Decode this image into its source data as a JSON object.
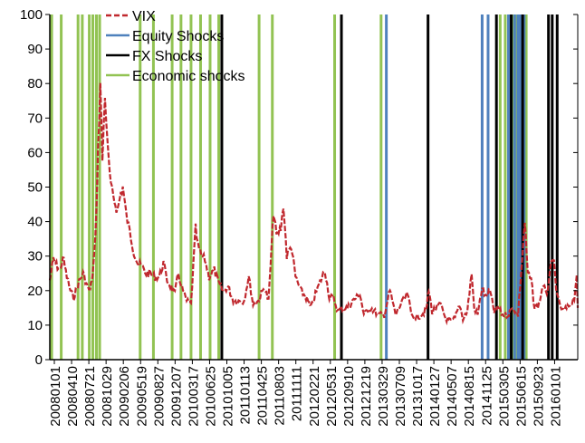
{
  "chart_data": {
    "type": "line",
    "title": "",
    "xlabel": "",
    "ylabel": "",
    "ylim": [
      0,
      100
    ],
    "yticks": [
      0,
      10,
      20,
      30,
      40,
      50,
      60,
      70,
      80,
      90,
      100
    ],
    "xlim": [
      "2008-01-01",
      "2016-06-30"
    ],
    "x_tick_labels": [
      "20080101",
      "20080410",
      "20080721",
      "20081029",
      "20090206",
      "20090519",
      "20090827",
      "20091207",
      "20100317",
      "20100625",
      "20101005",
      "20110113",
      "20110425",
      "20110803",
      "20111111",
      "20120221",
      "20120531",
      "20120910",
      "20121219",
      "20130329",
      "20130709",
      "20131017",
      "20140127",
      "20140507",
      "20140815",
      "20141125",
      "20150305",
      "20150615",
      "20150923",
      "20160101"
    ],
    "grid": false,
    "legend": {
      "position": "top-left",
      "entries": [
        {
          "label": "VIX",
          "color": "#c0282e",
          "style": "dashed"
        },
        {
          "label": "Equity Shocks",
          "color": "#4f81bd",
          "style": "solid"
        },
        {
          "label": "FX Shocks",
          "color": "#000000",
          "style": "solid"
        },
        {
          "label": "Economic shocks",
          "color": "#92c353",
          "style": "solid"
        }
      ]
    },
    "series": [
      {
        "name": "VIX",
        "color": "#c0282e",
        "points": [
          [
            "2008-01-01",
            23
          ],
          [
            "2008-01-22",
            29
          ],
          [
            "2008-02-15",
            27
          ],
          [
            "2008-03-05",
            26
          ],
          [
            "2008-03-17",
            30
          ],
          [
            "2008-04-10",
            24
          ],
          [
            "2008-05-01",
            20
          ],
          [
            "2008-05-20",
            18
          ],
          [
            "2008-06-15",
            22
          ],
          [
            "2008-07-15",
            25
          ],
          [
            "2008-08-10",
            21
          ],
          [
            "2008-08-25",
            20
          ],
          [
            "2008-09-10",
            25
          ],
          [
            "2008-09-25",
            35
          ],
          [
            "2008-10-10",
            60
          ],
          [
            "2008-10-24",
            80
          ],
          [
            "2008-11-05",
            58
          ],
          [
            "2008-11-20",
            77
          ],
          [
            "2008-12-05",
            62
          ],
          [
            "2008-12-25",
            50
          ],
          [
            "2009-01-15",
            46
          ],
          [
            "2009-02-01",
            43
          ],
          [
            "2009-02-20",
            48
          ],
          [
            "2009-03-05",
            50
          ],
          [
            "2009-03-25",
            42
          ],
          [
            "2009-04-15",
            37
          ],
          [
            "2009-05-10",
            31
          ],
          [
            "2009-06-01",
            28
          ],
          [
            "2009-06-25",
            27
          ],
          [
            "2009-07-20",
            25
          ],
          [
            "2009-08-15",
            25
          ],
          [
            "2009-09-10",
            24
          ],
          [
            "2009-10-05",
            24
          ],
          [
            "2009-10-30",
            28
          ],
          [
            "2009-11-20",
            23
          ],
          [
            "2009-12-15",
            21
          ],
          [
            "2010-01-05",
            19
          ],
          [
            "2010-01-25",
            25
          ],
          [
            "2010-02-15",
            21
          ],
          [
            "2010-03-15",
            17
          ],
          [
            "2010-04-10",
            16
          ],
          [
            "2010-05-07",
            38
          ],
          [
            "2010-05-20",
            33
          ],
          [
            "2010-06-10",
            30
          ],
          [
            "2010-07-01",
            29
          ],
          [
            "2010-07-25",
            24
          ],
          [
            "2010-08-25",
            26
          ],
          [
            "2010-09-20",
            22
          ],
          [
            "2010-10-15",
            20
          ],
          [
            "2010-11-15",
            21
          ],
          [
            "2010-12-15",
            17
          ],
          [
            "2011-01-15",
            17
          ],
          [
            "2011-02-15",
            17
          ],
          [
            "2011-03-15",
            24
          ],
          [
            "2011-04-10",
            16
          ],
          [
            "2011-05-10",
            17
          ],
          [
            "2011-06-15",
            21
          ],
          [
            "2011-07-10",
            17
          ],
          [
            "2011-08-08",
            43
          ],
          [
            "2011-08-25",
            36
          ],
          [
            "2011-09-20",
            38
          ],
          [
            "2011-10-05",
            45
          ],
          [
            "2011-10-25",
            30
          ],
          [
            "2011-11-20",
            33
          ],
          [
            "2011-12-15",
            24
          ],
          [
            "2012-01-15",
            20
          ],
          [
            "2012-02-15",
            18
          ],
          [
            "2012-03-15",
            15
          ],
          [
            "2012-04-10",
            19
          ],
          [
            "2012-05-20",
            24
          ],
          [
            "2012-06-05",
            26
          ],
          [
            "2012-07-01",
            18
          ],
          [
            "2012-07-25",
            18
          ],
          [
            "2012-08-20",
            14
          ],
          [
            "2012-09-15",
            15
          ],
          [
            "2012-10-15",
            15
          ],
          [
            "2012-11-15",
            17
          ],
          [
            "2012-12-28",
            19
          ],
          [
            "2013-01-20",
            13
          ],
          [
            "2013-03-01",
            15
          ],
          [
            "2013-04-15",
            13
          ],
          [
            "2013-05-20",
            13
          ],
          [
            "2013-06-22",
            20
          ],
          [
            "2013-07-25",
            13
          ],
          [
            "2013-08-25",
            16
          ],
          [
            "2013-10-05",
            19
          ],
          [
            "2013-10-25",
            13
          ],
          [
            "2013-11-25",
            12
          ],
          [
            "2013-12-20",
            13
          ],
          [
            "2014-01-20",
            14
          ],
          [
            "2014-02-05",
            20
          ],
          [
            "2014-02-25",
            14
          ],
          [
            "2014-03-20",
            15
          ],
          [
            "2014-04-15",
            16
          ],
          [
            "2014-05-15",
            12
          ],
          [
            "2014-06-15",
            11
          ],
          [
            "2014-07-10",
            12
          ],
          [
            "2014-08-05",
            16
          ],
          [
            "2014-08-25",
            12
          ],
          [
            "2014-09-20",
            14
          ],
          [
            "2014-10-15",
            25
          ],
          [
            "2014-10-30",
            15
          ],
          [
            "2014-11-20",
            13
          ],
          [
            "2014-12-16",
            21
          ],
          [
            "2015-01-05",
            18
          ],
          [
            "2015-01-30",
            20
          ],
          [
            "2015-02-25",
            14
          ],
          [
            "2015-03-20",
            15
          ],
          [
            "2015-04-15",
            13
          ],
          [
            "2015-05-15",
            13
          ],
          [
            "2015-06-15",
            15
          ],
          [
            "2015-07-15",
            13
          ],
          [
            "2015-08-24",
            40
          ],
          [
            "2015-09-10",
            25
          ],
          [
            "2015-09-30",
            23
          ],
          [
            "2015-10-20",
            15
          ],
          [
            "2015-11-15",
            16
          ],
          [
            "2015-12-10",
            22
          ],
          [
            "2015-12-31",
            18
          ],
          [
            "2016-01-20",
            27
          ],
          [
            "2016-02-11",
            28
          ],
          [
            "2016-03-01",
            18
          ],
          [
            "2016-04-01",
            14
          ],
          [
            "2016-05-01",
            15
          ],
          [
            "2016-06-10",
            18
          ],
          [
            "2016-06-24",
            25
          ],
          [
            "2016-06-30",
            15
          ]
        ]
      }
    ],
    "shocks": {
      "equity": {
        "label": "Equity Shocks",
        "color": "#4f81bd",
        "dates": [
          "2013-06-01",
          "2014-12-16",
          "2015-01-20",
          "2015-05-20",
          "2015-06-25",
          "2015-07-15",
          "2015-07-30",
          "2015-08-20"
        ]
      },
      "fx": {
        "label": "FX Shocks",
        "color": "#000000",
        "dates": [
          "2010-10-08",
          "2012-09-10",
          "2014-02-01",
          "2015-03-10",
          "2015-06-05",
          "2015-08-11",
          "2016-01-10",
          "2016-02-01",
          "2016-03-01"
        ]
      },
      "economic": {
        "label": "Economic shocks",
        "color": "#92c353",
        "dates": [
          "2008-01-12",
          "2008-03-08",
          "2008-06-15",
          "2008-07-10",
          "2008-08-20",
          "2008-09-10",
          "2008-10-01",
          "2008-10-20",
          "2009-06-15",
          "2009-09-01",
          "2009-12-20",
          "2010-02-10",
          "2010-04-10",
          "2010-06-05",
          "2010-07-31",
          "2010-09-20",
          "2011-05-15",
          "2011-08-01",
          "2012-08-01",
          "2013-05-01",
          "2015-04-01",
          "2015-05-01",
          "2015-05-25",
          "2015-06-15",
          "2015-07-05",
          "2015-08-01",
          "2015-09-01"
        ]
      }
    }
  }
}
